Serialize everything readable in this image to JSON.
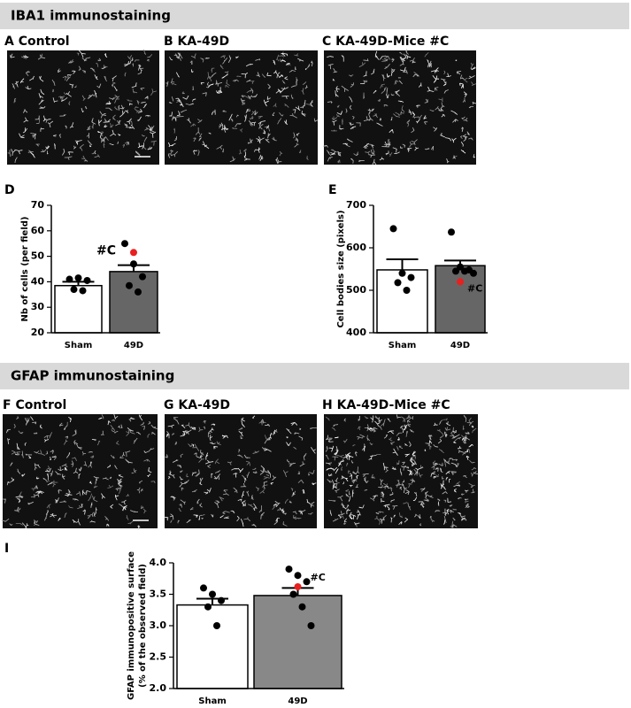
{
  "sections": [
    {
      "title": "IBA1 immunostaining"
    },
    {
      "title": "GFAP immunostaining"
    }
  ],
  "panels": {
    "A": "A Control",
    "B": "B KA-49D",
    "C": "C KA-49D-Mice #C",
    "D": "D",
    "E": "E",
    "F": "F Control",
    "G": "G KA-49D",
    "H": "H KA-49D-Mice #C",
    "I": "I"
  },
  "chart_data": [
    {
      "type": "bar",
      "y_label": [
        "Nb of cells (per field)"
      ],
      "categories": [
        "Sham",
        "49D"
      ],
      "values": [
        38.5,
        44
      ],
      "errors": [
        1.5,
        2.5
      ],
      "points": [
        [
          41,
          41.5,
          40.5,
          37,
          36.5
        ],
        [
          55,
          47,
          42,
          38.5,
          36
        ]
      ],
      "bar_colors": [
        "#ffffff",
        "#666666"
      ],
      "point_color": "#000000",
      "highlight": {
        "category": 1,
        "value": 51.5,
        "label": "#C",
        "color": "#e8201f"
      },
      "ylim": [
        20,
        70
      ],
      "yticks": [
        20,
        30,
        40,
        50,
        60,
        70
      ]
    },
    {
      "type": "bar",
      "y_label": [
        "Cell bodies size (pixels)"
      ],
      "categories": [
        "Sham",
        "49D"
      ],
      "values": [
        548,
        558
      ],
      "errors": [
        25,
        12
      ],
      "points": [
        [
          645,
          540,
          530,
          518,
          500
        ],
        [
          637,
          555,
          548,
          545,
          545,
          540
        ]
      ],
      "bar_colors": [
        "#ffffff",
        "#666666"
      ],
      "point_color": "#000000",
      "highlight": {
        "category": 1,
        "value": 520,
        "label": "#C",
        "color": "#e8201f"
      },
      "ylim": [
        400,
        700
      ],
      "yticks": [
        400,
        500,
        600,
        700
      ]
    },
    {
      "type": "bar",
      "y_label": [
        "GFAP immunopositive surface",
        "(% of the observed field)"
      ],
      "categories": [
        "Sham",
        "49D"
      ],
      "values": [
        3.33,
        3.48
      ],
      "errors": [
        0.1,
        0.12
      ],
      "points": [
        [
          3.6,
          3.5,
          3.4,
          3.3,
          3.0
        ],
        [
          3.9,
          3.8,
          3.7,
          3.5,
          3.3,
          3.0
        ]
      ],
      "bar_colors": [
        "#ffffff",
        "#888888"
      ],
      "point_color": "#000000",
      "highlight": {
        "category": 1,
        "value": 3.62,
        "label": "#C",
        "color": "#e8201f"
      },
      "ylim": [
        2,
        4
      ],
      "yticks": [
        {
          "value": 2,
          "label": "2.0"
        },
        {
          "value": 2.5,
          "label": "2.5"
        },
        {
          "value": 3,
          "label": "3.0"
        },
        {
          "value": 3.5,
          "label": "3.5"
        },
        {
          "value": 4,
          "label": "4.0"
        }
      ]
    }
  ]
}
